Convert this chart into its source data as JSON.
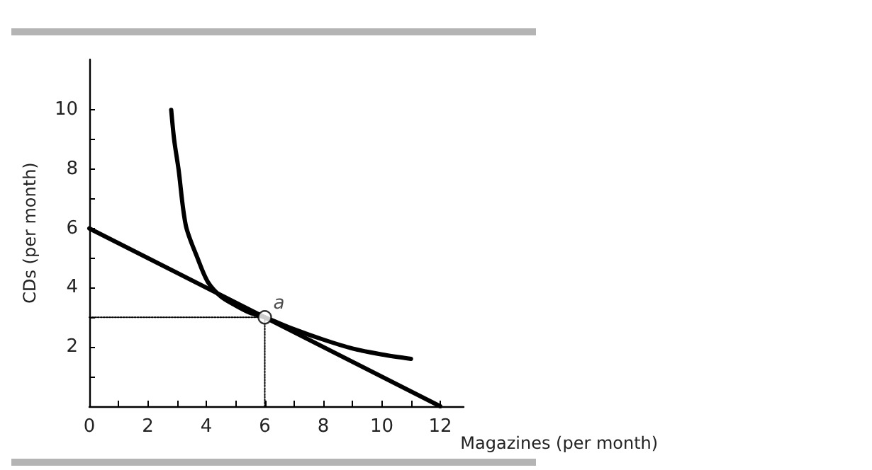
{
  "chart_data": {
    "type": "line",
    "xlabel": "Magazines (per month)",
    "ylabel": "CDs (per month)",
    "xlim": [
      0,
      12.8
    ],
    "ylim": [
      0,
      11.7
    ],
    "xticks": [
      0,
      {
        "value": 1,
        "label": null
      },
      2,
      {
        "value": 3,
        "label": null
      },
      4,
      {
        "value": 5,
        "label": null
      },
      6,
      {
        "value": 7,
        "label": null
      },
      8,
      {
        "value": 9,
        "label": null
      },
      10,
      {
        "value": 11,
        "label": null
      },
      12
    ],
    "yticks": [
      {
        "value": 1,
        "label": null
      },
      2,
      {
        "value": 3,
        "label": null
      },
      4,
      {
        "value": 5,
        "label": null
      },
      6,
      {
        "value": 7,
        "label": null
      },
      8,
      {
        "value": 9,
        "label": null
      },
      10
    ],
    "grid": false,
    "series": [
      {
        "color": "#000000",
        "x": [
          0,
          12
        ],
        "values": [
          6,
          0
        ],
        "line_style": "solid"
      },
      {
        "color": "#000000",
        "x": [
          2.8,
          2.9,
          3.05,
          3.3,
          3.7,
          4.05,
          4.5,
          5.0,
          5.5,
          6,
          7,
          8,
          9,
          10,
          11
        ],
        "values": [
          10,
          9,
          8,
          6.1,
          5,
          4.2,
          3.7,
          3.4,
          3.15,
          3,
          2.6,
          2.25,
          1.95,
          1.75,
          1.6
        ],
        "line_style": "solid"
      },
      {
        "color": "#000000",
        "x": [
          0,
          6
        ],
        "values": [
          3,
          3
        ],
        "line_style": "dotted"
      },
      {
        "color": "#000000",
        "x": [
          6,
          6
        ],
        "values": [
          0,
          3
        ],
        "line_style": "dotted"
      },
      {
        "type": "scatter",
        "color": "#000000",
        "x": [
          6
        ],
        "values": [
          3
        ],
        "marker": "circle"
      }
    ],
    "annotations": [
      {
        "text": "a",
        "x": 6,
        "y": 3
      }
    ]
  }
}
